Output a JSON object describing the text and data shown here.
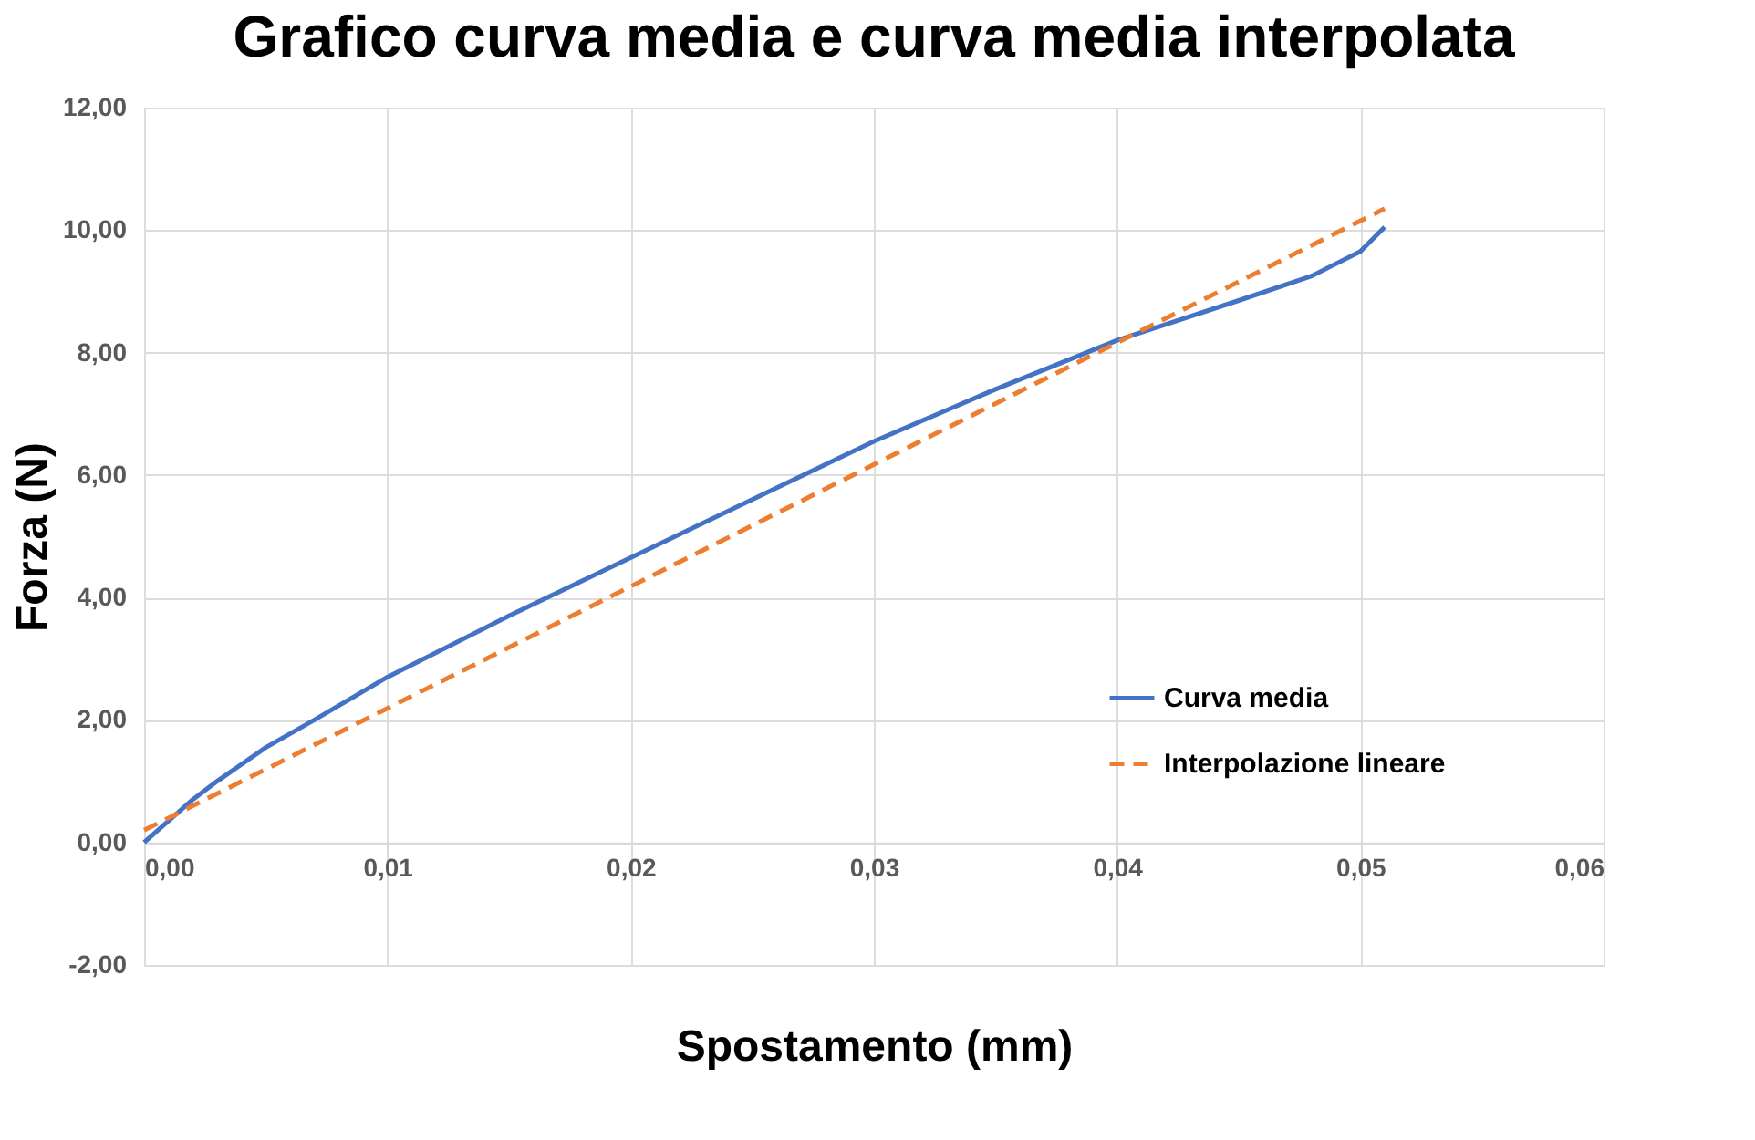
{
  "chart_data": {
    "type": "line",
    "title": "Grafico curva media e curva media interpolata",
    "xlabel": "Spostamento (mm)",
    "ylabel": "Forza (N)",
    "xlim": [
      0,
      0.06
    ],
    "ylim": [
      -2,
      12
    ],
    "xticks": [
      {
        "value": 0,
        "label": "0,00"
      },
      {
        "value": 0.01,
        "label": "0,01"
      },
      {
        "value": 0.02,
        "label": "0,02"
      },
      {
        "value": 0.03,
        "label": "0,03"
      },
      {
        "value": 0.04,
        "label": "0,04"
      },
      {
        "value": 0.05,
        "label": "0,05"
      },
      {
        "value": 0.06,
        "label": "0,06"
      }
    ],
    "yticks": [
      {
        "value": -2,
        "label": "-2,00"
      },
      {
        "value": 0,
        "label": "0,00"
      },
      {
        "value": 2,
        "label": "2,00"
      },
      {
        "value": 4,
        "label": "4,00"
      },
      {
        "value": 6,
        "label": "6,00"
      },
      {
        "value": 8,
        "label": "8,00"
      },
      {
        "value": 10,
        "label": "10,00"
      },
      {
        "value": 12,
        "label": "12,00"
      }
    ],
    "grid": true,
    "legend": "right",
    "marker": "none",
    "series": [
      {
        "name": "Curva media",
        "color": "#4472c4",
        "line_style": "solid",
        "x": [
          0,
          0.001,
          0.002,
          0.003,
          0.005,
          0.007,
          0.01,
          0.015,
          0.02,
          0.025,
          0.03,
          0.035,
          0.04,
          0.045,
          0.048,
          0.05,
          0.051
        ],
        "values": [
          0,
          0.35,
          0.7,
          1.0,
          1.55,
          2.0,
          2.7,
          3.7,
          4.65,
          5.6,
          6.55,
          7.4,
          8.2,
          8.85,
          9.25,
          9.65,
          10.05
        ]
      },
      {
        "name": "Interpolazione lineare",
        "color": "#ed7d31",
        "line_style": "dashed",
        "x": [
          0,
          0.051
        ],
        "values": [
          0.2,
          10.35
        ]
      }
    ]
  }
}
